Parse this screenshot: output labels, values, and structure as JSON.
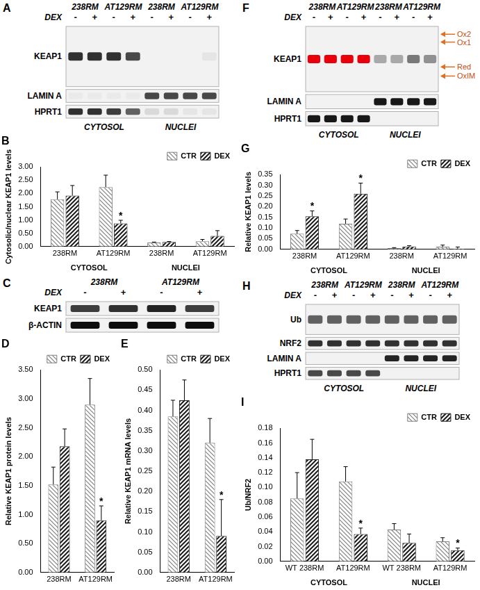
{
  "blots": [
    {
      "panel": "A",
      "lane_groups": [
        "238RM",
        "AT129RM",
        "238RM",
        "AT129RM"
      ],
      "dex_label": "DEX",
      "dex": [
        "-",
        "+",
        "-",
        "+",
        "-",
        "+",
        "-",
        "+"
      ],
      "rows": [
        {
          "label": "KEAP1",
          "intensity": [
            0.8,
            0.8,
            0.8,
            0.7,
            0,
            0,
            0,
            0.05
          ]
        },
        {
          "label": "LAMIN A",
          "intensity": [
            0.03,
            0.03,
            0.03,
            0.03,
            0.7,
            0.7,
            0.7,
            0.7
          ]
        },
        {
          "label": "HPRT1",
          "intensity": [
            0.8,
            0.8,
            0.75,
            0.6,
            0.1,
            0.1,
            0.05,
            0.05
          ]
        }
      ],
      "compartments": [
        "CYTOSOL",
        "NUCLEI"
      ]
    },
    {
      "panel": "C",
      "lane_groups": [
        "238RM",
        "AT129RM"
      ],
      "dex_label": "DEX",
      "dex": [
        "-",
        "+",
        "-",
        "+"
      ],
      "rows": [
        {
          "label": "KEAP1",
          "intensity": [
            0.75,
            0.8,
            0.85,
            0.75
          ]
        },
        {
          "label": "β-ACTIN",
          "intensity": [
            0.95,
            0.95,
            0.95,
            0.95
          ]
        }
      ]
    },
    {
      "panel": "F",
      "lane_groups": [
        "238RM",
        "AT129RM",
        "238RM",
        "AT129RM"
      ],
      "dex_label": "DEX",
      "dex": [
        "-",
        "+",
        "-",
        "+",
        "-",
        "+",
        "-",
        "+"
      ],
      "rows": [
        {
          "label": "KEAP1",
          "intensity": [
            1,
            1,
            1,
            1,
            0.3,
            0.3,
            0.5,
            0.4
          ],
          "colors": [
            "#e8000b",
            "#e8000b",
            "#e8000b",
            "#e8000b",
            "#000000",
            "#000000",
            "#000000",
            "#000000"
          ]
        },
        {
          "label": "LAMIN A",
          "intensity": [
            0,
            0,
            0,
            0,
            0.9,
            0.9,
            0.9,
            0.9
          ]
        },
        {
          "label": "HPRT1",
          "intensity": [
            0.9,
            0.9,
            0.9,
            0.9,
            0,
            0,
            0,
            0
          ]
        }
      ],
      "arrows": [
        "Ox2",
        "Ox1",
        "Red",
        "OxIM"
      ],
      "compartments": [
        "CYTOSOL",
        "NUCLEI"
      ]
    },
    {
      "panel": "H",
      "lane_groups": [
        "238RM",
        "AT129RM",
        "238RM",
        "AT129RM"
      ],
      "dex_label": "DEX",
      "dex": [
        "-",
        "+",
        "-",
        "+",
        "-",
        "+",
        "-",
        "+"
      ],
      "rows": [
        {
          "label": "Ub",
          "intensity": [
            0.6,
            0.6,
            0.6,
            0.6,
            0.6,
            0.6,
            0.6,
            0.6
          ]
        },
        {
          "label": "NRF2",
          "intensity": [
            0.8,
            0.8,
            0.8,
            0.8,
            0.8,
            0.8,
            0.8,
            0.8
          ]
        },
        {
          "label": "LAMIN A",
          "intensity": [
            0,
            0,
            0,
            0,
            0.85,
            0.85,
            0.85,
            0.85
          ]
        },
        {
          "label": "HPRT1",
          "intensity": [
            0.7,
            0.7,
            0.7,
            0.7,
            0,
            0,
            0,
            0
          ]
        }
      ],
      "compartments": [
        "CYTOSOL",
        "NUCLEI"
      ]
    }
  ],
  "chart_data": [
    {
      "type": "bar",
      "title": "B",
      "y_label": "Cytosolic/nuclear KEAP1 levels",
      "categories": [
        "238RM",
        "AT129RM",
        "238RM",
        "AT129RM"
      ],
      "groups": [
        "CYTOSOL",
        "NUCLEI"
      ],
      "series": [
        {
          "name": "CTR",
          "color": "#7f7f7f",
          "values": [
            1.78,
            2.24,
            0.15,
            0.2
          ],
          "errors": [
            0.28,
            0.45,
            0.02,
            0.07
          ],
          "marks": [
            null,
            null,
            null,
            null
          ]
        },
        {
          "name": "DEX",
          "color": "#1a1a1a",
          "values": [
            1.92,
            0.87,
            0.17,
            0.4
          ],
          "errors": [
            0.38,
            0.12,
            0.02,
            0.2
          ],
          "marks": [
            null,
            "*",
            null,
            null
          ]
        }
      ],
      "ylim": [
        0,
        3
      ],
      "yticks": [
        {
          "value": 0,
          "label": "0.00"
        },
        {
          "value": 0.5,
          "label": "0.50"
        },
        {
          "value": 1,
          "label": "1.00"
        },
        {
          "value": 1.5,
          "label": "1.50"
        },
        {
          "value": 2,
          "label": "2.00"
        },
        {
          "value": 2.5,
          "label": "2.50"
        },
        {
          "value": 3,
          "label": "3.00"
        }
      ],
      "grid": false,
      "legend": "upper right"
    },
    {
      "type": "bar",
      "title": "D",
      "y_label": "Relative KEAP1 protein levels",
      "categories": [
        "238RM",
        "AT129RM"
      ],
      "series": [
        {
          "name": "CTR",
          "color": "#7f7f7f",
          "values": [
            1.52,
            2.9
          ],
          "errors": [
            0.3,
            0.45
          ],
          "marks": [
            null,
            null
          ]
        },
        {
          "name": "DEX",
          "color": "#1a1a1a",
          "values": [
            2.18,
            0.9
          ],
          "errors": [
            0.3,
            0.25
          ],
          "marks": [
            null,
            "*"
          ]
        }
      ],
      "ylim": [
        0,
        3.5
      ],
      "yticks": [
        {
          "value": 0,
          "label": "0.00"
        },
        {
          "value": 0.5,
          "label": "0.50"
        },
        {
          "value": 1,
          "label": "1.00"
        },
        {
          "value": 1.5,
          "label": "1.50"
        },
        {
          "value": 2,
          "label": "2.00"
        },
        {
          "value": 2.5,
          "label": "2.50"
        },
        {
          "value": 3,
          "label": "3.00"
        },
        {
          "value": 3.5,
          "label": "3.50"
        }
      ],
      "grid": false,
      "legend": "upper right"
    },
    {
      "type": "bar",
      "title": "E",
      "y_label": "Relative KEAP1 mRNA levels",
      "categories": [
        "238RM",
        "AT129RM"
      ],
      "series": [
        {
          "name": "CTR",
          "color": "#7f7f7f",
          "values": [
            0.385,
            0.32
          ],
          "errors": [
            0.04,
            0.06
          ],
          "marks": [
            null,
            null
          ]
        },
        {
          "name": "DEX",
          "color": "#1a1a1a",
          "values": [
            0.425,
            0.09
          ],
          "errors": [
            0.05,
            0.09
          ],
          "marks": [
            null,
            "*"
          ]
        }
      ],
      "ylim": [
        0,
        0.5
      ],
      "yticks": [
        {
          "value": 0,
          "label": "0.00"
        },
        {
          "value": 0.05,
          "label": "0.05"
        },
        {
          "value": 0.1,
          "label": "0.10"
        },
        {
          "value": 0.15,
          "label": "0.15"
        },
        {
          "value": 0.2,
          "label": "0.20"
        },
        {
          "value": 0.25,
          "label": "0.25"
        },
        {
          "value": 0.3,
          "label": "0.30"
        },
        {
          "value": 0.35,
          "label": "0.35"
        },
        {
          "value": 0.4,
          "label": "0.40"
        },
        {
          "value": 0.45,
          "label": "0.45"
        },
        {
          "value": 0.5,
          "label": "0.50"
        }
      ],
      "grid": false,
      "legend": "upper right"
    },
    {
      "type": "bar",
      "title": "G",
      "y_label": "Relative KEAP1 levels",
      "categories": [
        "238RM",
        "AT129RM",
        "238RM",
        "AT129RM"
      ],
      "groups": [
        "CYTOSOL",
        "NUCLEI"
      ],
      "series": [
        {
          "name": "CTR",
          "color": "#7f7f7f",
          "values": [
            0.073,
            0.12,
            0.006,
            0.012
          ],
          "errors": [
            0.015,
            0.022,
            0.002,
            0.008
          ],
          "marks": [
            null,
            null,
            null,
            null
          ]
        },
        {
          "name": "DEX",
          "color": "#1a1a1a",
          "values": [
            0.155,
            0.26,
            0.013,
            0.003
          ],
          "errors": [
            0.025,
            0.05,
            0.004,
            0.008
          ],
          "marks": [
            "*",
            "*",
            null,
            null
          ]
        }
      ],
      "ylim": [
        0,
        0.35
      ],
      "yticks": [
        {
          "value": 0,
          "label": "0.00"
        },
        {
          "value": 0.05,
          "label": "0.05"
        },
        {
          "value": 0.1,
          "label": "0.10"
        },
        {
          "value": 0.15,
          "label": "0.15"
        },
        {
          "value": 0.2,
          "label": "0.20"
        },
        {
          "value": 0.25,
          "label": "0.25"
        },
        {
          "value": 0.3,
          "label": "0.30"
        },
        {
          "value": 0.35,
          "label": "0.35"
        }
      ],
      "grid": false,
      "legend": "upper right"
    },
    {
      "type": "bar",
      "title": "I",
      "y_label": "Ub/NRF2",
      "categories": [
        "WT 238RM",
        "AT129RM",
        "WT 238RM",
        "AT129RM"
      ],
      "groups": [
        "CYTOSOL",
        "NUCLEI"
      ],
      "series": [
        {
          "name": "CTR",
          "color": "#7f7f7f",
          "values": [
            0.085,
            0.108,
            0.043,
            0.027
          ],
          "errors": [
            0.035,
            0.02,
            0.008,
            0.005
          ],
          "marks": [
            null,
            null,
            null,
            null
          ]
        },
        {
          "name": "DEX",
          "color": "#1a1a1a",
          "values": [
            0.138,
            0.037,
            0.025,
            0.015
          ],
          "errors": [
            0.027,
            0.008,
            0.012,
            0.003
          ],
          "marks": [
            null,
            "*",
            null,
            "*"
          ]
        }
      ],
      "ylim": [
        0,
        0.18
      ],
      "yticks": [
        {
          "value": 0,
          "label": "0.00"
        },
        {
          "value": 0.02,
          "label": "0.02"
        },
        {
          "value": 0.04,
          "label": "0.04"
        },
        {
          "value": 0.06,
          "label": "0.06"
        },
        {
          "value": 0.08,
          "label": "0.08"
        },
        {
          "value": 0.1,
          "label": "0.10"
        },
        {
          "value": 0.12,
          "label": "0.12"
        },
        {
          "value": 0.14,
          "label": "0.14"
        },
        {
          "value": 0.16,
          "label": "0.16"
        },
        {
          "value": 0.18,
          "label": "0.18"
        }
      ],
      "grid": false,
      "legend": "upper right"
    }
  ]
}
